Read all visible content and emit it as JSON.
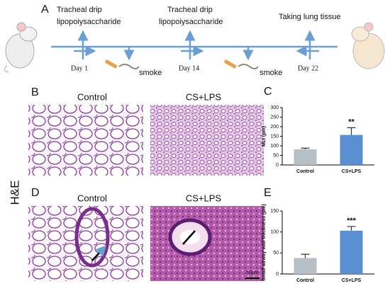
{
  "timeline": {
    "panel": "A",
    "events": [
      {
        "title": "Tracheal drip",
        "subtitle": "lipopoiysaccharide",
        "day": "Day 1"
      },
      {
        "title": "Tracheal drip",
        "subtitle": "lipopoiysaccharide",
        "day": "Day 14"
      },
      {
        "title": "Taking lung tissue",
        "day": "Day 22"
      }
    ],
    "smoke": [
      "smoke",
      "smoke"
    ]
  },
  "histology": {
    "stain": "H&E",
    "rows": [
      {
        "panel": "B",
        "images": [
          "Control",
          "CS+LPS"
        ]
      },
      {
        "panel": "D",
        "images": [
          "Control",
          "CS+LPS"
        ],
        "scale_bar": "50μm"
      }
    ]
  },
  "chart_data": [
    {
      "type": "bar",
      "panel": "C",
      "y_label": "MLI (μm)",
      "categories": [
        "Control",
        "CS+LPS"
      ],
      "values": [
        82,
        157
      ],
      "errors": [
        6,
        38
      ],
      "colors": [
        "#b7bfc6",
        "#5b8fd3"
      ],
      "value_annotations": [
        null,
        "**"
      ],
      "ylim": [
        0,
        300
      ],
      "yticks": [
        0,
        50,
        100,
        150,
        200,
        250,
        300
      ]
    },
    {
      "type": "bar",
      "panel": "E",
      "y_label": "Small airway wall thickness (μm)",
      "categories": [
        "Control",
        "CS+LPS"
      ],
      "values": [
        38,
        103
      ],
      "errors": [
        9,
        10
      ],
      "colors": [
        "#b7bfc6",
        "#5b8fd3"
      ],
      "value_annotations": [
        null,
        "***"
      ],
      "ylim": [
        0,
        150
      ],
      "yticks": [
        0,
        50,
        100,
        150
      ]
    }
  ]
}
